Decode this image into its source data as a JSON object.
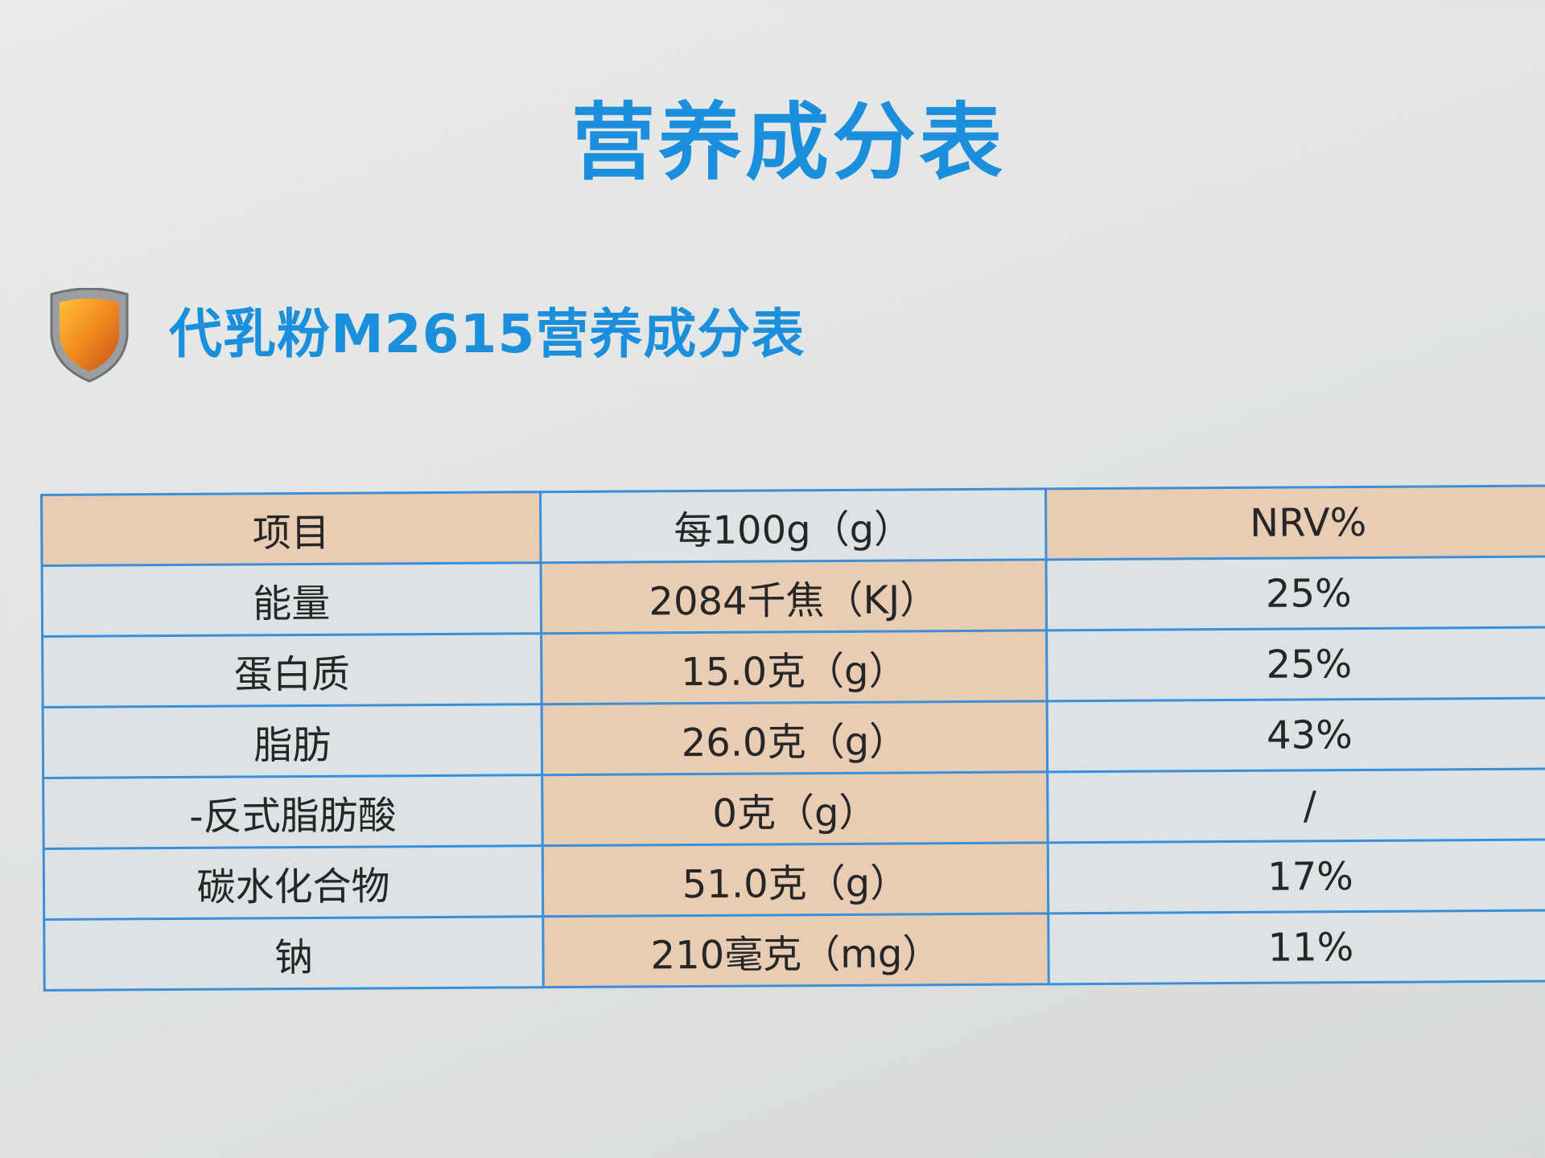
{
  "header": {
    "title": "营养成分表"
  },
  "section": {
    "title": "代乳粉M2615营养成分表"
  },
  "table": {
    "columns": [
      "项目",
      "每100g（g）",
      "NRV%"
    ],
    "rows": [
      [
        "能量",
        "2084千焦（KJ）",
        "25%"
      ],
      [
        "蛋白质",
        "15.0克（g）",
        "25%"
      ],
      [
        "脂肪",
        "26.0克（g）",
        "43%"
      ],
      [
        "-反式脂肪酸",
        "0克（g）",
        "/"
      ],
      [
        "碳水化合物",
        "51.0克（g）",
        "17%"
      ],
      [
        "钠",
        "210毫克（mg）",
        "11%"
      ]
    ]
  }
}
